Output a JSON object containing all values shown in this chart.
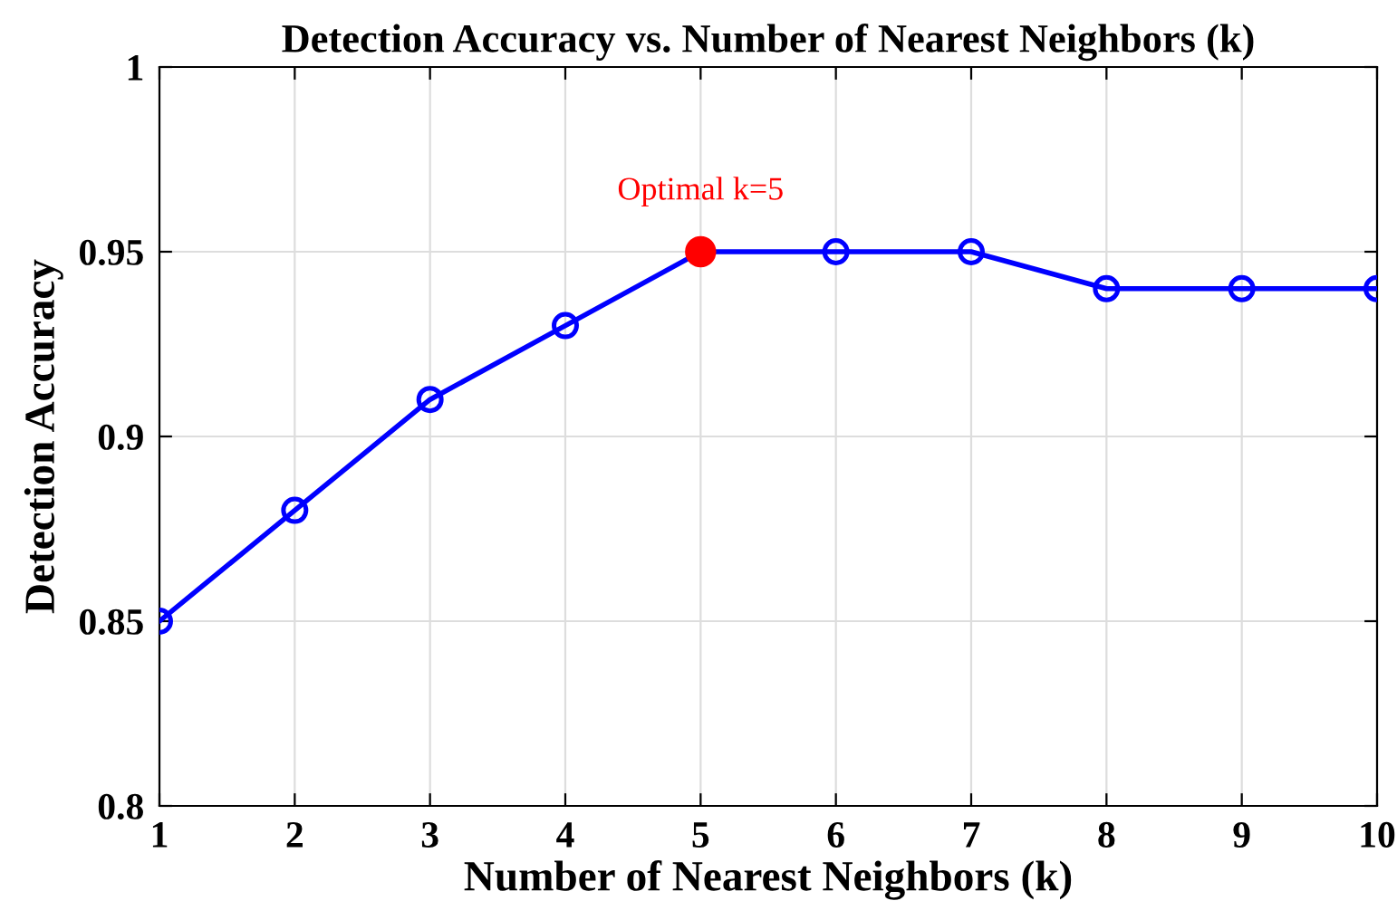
{
  "chart_data": {
    "type": "line",
    "title": "Detection Accuracy vs. Number of Nearest Neighbors (k)",
    "xlabel": "Number of Nearest Neighbors (k)",
    "ylabel": "Detection Accuracy",
    "series": [
      {
        "x": [
          1,
          2,
          3,
          4,
          5,
          6,
          7,
          8,
          9,
          10
        ],
        "values": [
          0.85,
          0.88,
          0.91,
          0.93,
          0.95,
          0.95,
          0.95,
          0.94,
          0.94,
          0.94
        ],
        "color": "#0000ff",
        "marker": "circle",
        "line_style": "solid"
      },
      {
        "type": "scatter",
        "x": [
          5
        ],
        "values": [
          0.95
        ],
        "color": "#ff0000",
        "marker": "circle"
      }
    ],
    "annotations": [
      {
        "text": "Optimal k=5",
        "x": 5,
        "y": 0.95
      }
    ],
    "xlim": [
      1,
      10
    ],
    "xticks": [
      1,
      2,
      3,
      4,
      5,
      6,
      7,
      8,
      9,
      10
    ],
    "ylim": [
      0.8,
      1
    ],
    "yticks": [
      0.8,
      0.85,
      0.9,
      0.95,
      1
    ],
    "grid": true
  }
}
